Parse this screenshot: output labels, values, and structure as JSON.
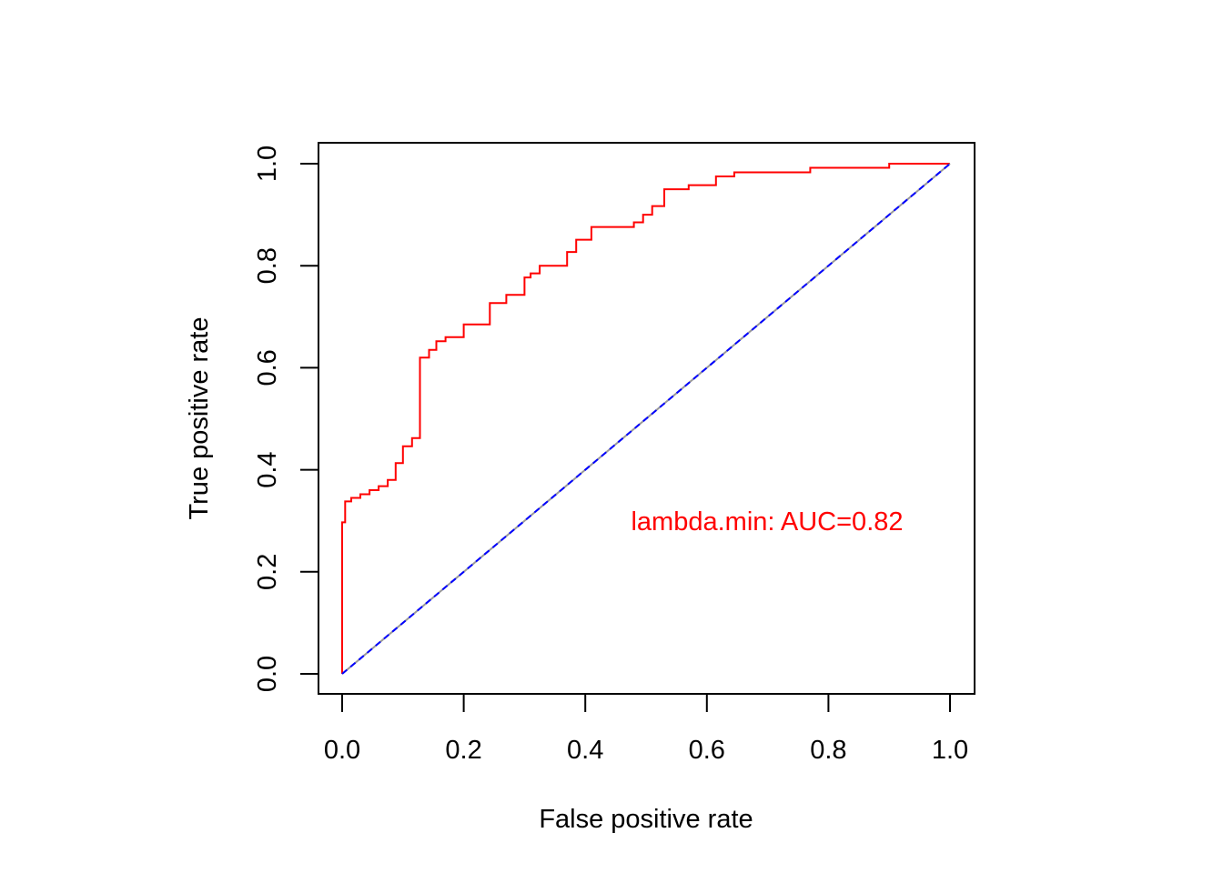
{
  "chart_data": {
    "type": "line",
    "xlabel": "False positive rate",
    "ylabel": "True positive rate",
    "xlim": [
      0.0,
      1.0
    ],
    "ylim": [
      0.0,
      1.0
    ],
    "x_ticks": [
      "0.0",
      "0.2",
      "0.4",
      "0.6",
      "0.8",
      "1.0"
    ],
    "y_ticks": [
      "0.0",
      "0.2",
      "0.4",
      "0.6",
      "0.8",
      "1.0"
    ],
    "grid": false,
    "annotation": {
      "text": "lambda.min: AUC=0.82",
      "color": "#ff0000"
    },
    "series": [
      {
        "style": "step",
        "color": "#ff0000",
        "x": [
          0,
          0,
          0.005,
          0.005,
          0.015,
          0.015,
          0.03,
          0.03,
          0.045,
          0.045,
          0.06,
          0.06,
          0.075,
          0.075,
          0.088,
          0.088,
          0.1,
          0.1,
          0.115,
          0.115,
          0.128,
          0.128,
          0.143,
          0.143,
          0.155,
          0.155,
          0.17,
          0.17,
          0.2,
          0.2,
          0.243,
          0.243,
          0.27,
          0.27,
          0.3,
          0.3,
          0.31,
          0.31,
          0.325,
          0.325,
          0.37,
          0.37,
          0.385,
          0.385,
          0.41,
          0.41,
          0.48,
          0.48,
          0.495,
          0.495,
          0.51,
          0.51,
          0.53,
          0.53,
          0.57,
          0.57,
          0.615,
          0.615,
          0.645,
          0.645,
          0.77,
          0.77,
          0.9,
          0.9,
          1.0
        ],
        "y": [
          0,
          0.297,
          0.297,
          0.338,
          0.338,
          0.345,
          0.345,
          0.352,
          0.352,
          0.36,
          0.36,
          0.368,
          0.368,
          0.38,
          0.38,
          0.413,
          0.413,
          0.446,
          0.446,
          0.462,
          0.462,
          0.62,
          0.62,
          0.635,
          0.635,
          0.652,
          0.652,
          0.66,
          0.66,
          0.685,
          0.685,
          0.727,
          0.727,
          0.743,
          0.743,
          0.777,
          0.777,
          0.785,
          0.785,
          0.8,
          0.8,
          0.827,
          0.827,
          0.851,
          0.851,
          0.876,
          0.876,
          0.885,
          0.885,
          0.9,
          0.9,
          0.917,
          0.917,
          0.95,
          0.95,
          0.958,
          0.958,
          0.975,
          0.975,
          0.983,
          0.983,
          0.992,
          0.992,
          1.0,
          1.0
        ]
      },
      {
        "style": "line",
        "color": "#999999",
        "x": [
          0,
          1
        ],
        "y": [
          0,
          1
        ]
      },
      {
        "style": "dashed",
        "color": "#0000ff",
        "x": [
          0,
          1
        ],
        "y": [
          0,
          1
        ]
      }
    ]
  }
}
